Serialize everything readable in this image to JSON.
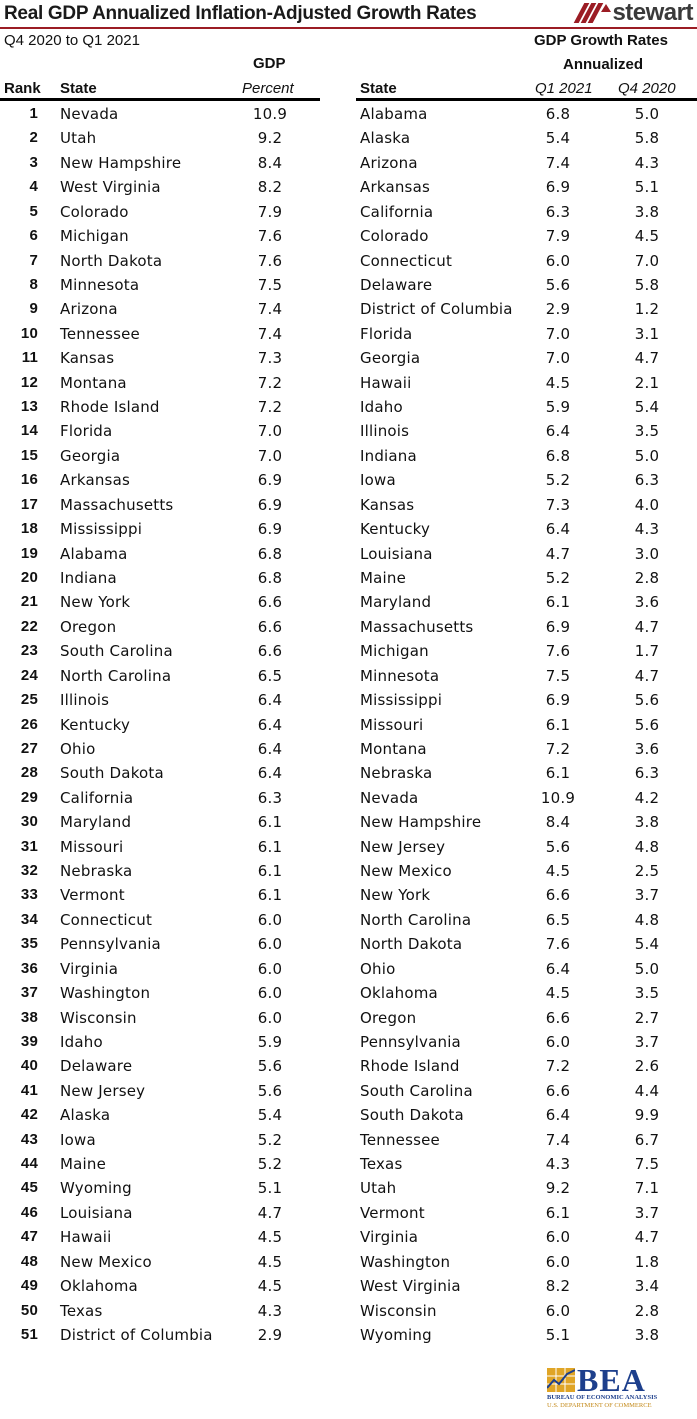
{
  "header": {
    "title": "Real GDP Annualized Inflation-Adjusted Growth Rates",
    "subtitle": "Q4 2020 to Q1 2021",
    "logo_text": "stewart"
  },
  "left_table": {
    "group_header": "GDP",
    "columns": [
      "Rank",
      "State",
      "Percent"
    ]
  },
  "right_table": {
    "group_header_line1": "GDP Growth Rates",
    "group_header_line2": "Annualized",
    "columns": [
      "State",
      "Q1 2021",
      "Q4 2020"
    ]
  },
  "footer": {
    "bea_logo_text": "BEA",
    "bea_line1": "BUREAU OF ECONOMIC ANALYSIS",
    "bea_line2": "U.S. DEPARTMENT OF COMMERCE"
  },
  "colors": {
    "accent_red": "#9b1c24",
    "bea_blue": "#1d3f8c",
    "bea_gold": "#e0a526"
  },
  "chart_data": [
    {
      "type": "table",
      "title": "Real GDP Annualized Inflation-Adjusted Growth Rates — Ranking",
      "subtitle": "Q4 2020 to Q1 2021",
      "columns": [
        "Rank",
        "State",
        "GDP Percent"
      ],
      "rows": [
        [
          1,
          "Nevada",
          "10.9"
        ],
        [
          2,
          "Utah",
          "9.2"
        ],
        [
          3,
          "New Hampshire",
          "8.4"
        ],
        [
          4,
          "West Virginia",
          "8.2"
        ],
        [
          5,
          "Colorado",
          "7.9"
        ],
        [
          6,
          "Michigan",
          "7.6"
        ],
        [
          7,
          "North Dakota",
          "7.6"
        ],
        [
          8,
          "Minnesota",
          "7.5"
        ],
        [
          9,
          "Arizona",
          "7.4"
        ],
        [
          10,
          "Tennessee",
          "7.4"
        ],
        [
          11,
          "Kansas",
          "7.3"
        ],
        [
          12,
          "Montana",
          "7.2"
        ],
        [
          13,
          "Rhode Island",
          "7.2"
        ],
        [
          14,
          "Florida",
          "7.0"
        ],
        [
          15,
          "Georgia",
          "7.0"
        ],
        [
          16,
          "Arkansas",
          "6.9"
        ],
        [
          17,
          "Massachusetts",
          "6.9"
        ],
        [
          18,
          "Mississippi",
          "6.9"
        ],
        [
          19,
          "Alabama",
          "6.8"
        ],
        [
          20,
          "Indiana",
          "6.8"
        ],
        [
          21,
          "New York",
          "6.6"
        ],
        [
          22,
          "Oregon",
          "6.6"
        ],
        [
          23,
          "South Carolina",
          "6.6"
        ],
        [
          24,
          "North Carolina",
          "6.5"
        ],
        [
          25,
          "Illinois",
          "6.4"
        ],
        [
          26,
          "Kentucky",
          "6.4"
        ],
        [
          27,
          "Ohio",
          "6.4"
        ],
        [
          28,
          "South Dakota",
          "6.4"
        ],
        [
          29,
          "California",
          "6.3"
        ],
        [
          30,
          "Maryland",
          "6.1"
        ],
        [
          31,
          "Missouri",
          "6.1"
        ],
        [
          32,
          "Nebraska",
          "6.1"
        ],
        [
          33,
          "Vermont",
          "6.1"
        ],
        [
          34,
          "Connecticut",
          "6.0"
        ],
        [
          35,
          "Pennsylvania",
          "6.0"
        ],
        [
          36,
          "Virginia",
          "6.0"
        ],
        [
          37,
          "Washington",
          "6.0"
        ],
        [
          38,
          "Wisconsin",
          "6.0"
        ],
        [
          39,
          "Idaho",
          "5.9"
        ],
        [
          40,
          "Delaware",
          "5.6"
        ],
        [
          41,
          "New Jersey",
          "5.6"
        ],
        [
          42,
          "Alaska",
          "5.4"
        ],
        [
          43,
          "Iowa",
          "5.2"
        ],
        [
          44,
          "Maine",
          "5.2"
        ],
        [
          45,
          "Wyoming",
          "5.1"
        ],
        [
          46,
          "Louisiana",
          "4.7"
        ],
        [
          47,
          "Hawaii",
          "4.5"
        ],
        [
          48,
          "New Mexico",
          "4.5"
        ],
        [
          49,
          "Oklahoma",
          "4.5"
        ],
        [
          50,
          "Texas",
          "4.3"
        ],
        [
          51,
          "District of Columbia",
          "2.9"
        ]
      ]
    },
    {
      "type": "table",
      "title": "GDP Growth Rates Annualized",
      "columns": [
        "State",
        "Q1 2021",
        "Q4 2020"
      ],
      "rows": [
        [
          "Alabama",
          "6.8",
          "5.0"
        ],
        [
          "Alaska",
          "5.4",
          "5.8"
        ],
        [
          "Arizona",
          "7.4",
          "4.3"
        ],
        [
          "Arkansas",
          "6.9",
          "5.1"
        ],
        [
          "California",
          "6.3",
          "3.8"
        ],
        [
          "Colorado",
          "7.9",
          "4.5"
        ],
        [
          "Connecticut",
          "6.0",
          "7.0"
        ],
        [
          "Delaware",
          "5.6",
          "5.8"
        ],
        [
          "District of Columbia",
          "2.9",
          "1.2"
        ],
        [
          "Florida",
          "7.0",
          "3.1"
        ],
        [
          "Georgia",
          "7.0",
          "4.7"
        ],
        [
          "Hawaii",
          "4.5",
          "2.1"
        ],
        [
          "Idaho",
          "5.9",
          "5.4"
        ],
        [
          "Illinois",
          "6.4",
          "3.5"
        ],
        [
          "Indiana",
          "6.8",
          "5.0"
        ],
        [
          "Iowa",
          "5.2",
          "6.3"
        ],
        [
          "Kansas",
          "7.3",
          "4.0"
        ],
        [
          "Kentucky",
          "6.4",
          "4.3"
        ],
        [
          "Louisiana",
          "4.7",
          "3.0"
        ],
        [
          "Maine",
          "5.2",
          "2.8"
        ],
        [
          "Maryland",
          "6.1",
          "3.6"
        ],
        [
          "Massachusetts",
          "6.9",
          "4.7"
        ],
        [
          "Michigan",
          "7.6",
          "1.7"
        ],
        [
          "Minnesota",
          "7.5",
          "4.7"
        ],
        [
          "Mississippi",
          "6.9",
          "5.6"
        ],
        [
          "Missouri",
          "6.1",
          "5.6"
        ],
        [
          "Montana",
          "7.2",
          "3.6"
        ],
        [
          "Nebraska",
          "6.1",
          "6.3"
        ],
        [
          "Nevada",
          "10.9",
          "4.2"
        ],
        [
          "New Hampshire",
          "8.4",
          "3.8"
        ],
        [
          "New Jersey",
          "5.6",
          "4.8"
        ],
        [
          "New Mexico",
          "4.5",
          "2.5"
        ],
        [
          "New York",
          "6.6",
          "3.7"
        ],
        [
          "North Carolina",
          "6.5",
          "4.8"
        ],
        [
          "North Dakota",
          "7.6",
          "5.4"
        ],
        [
          "Ohio",
          "6.4",
          "5.0"
        ],
        [
          "Oklahoma",
          "4.5",
          "3.5"
        ],
        [
          "Oregon",
          "6.6",
          "2.7"
        ],
        [
          "Pennsylvania",
          "6.0",
          "3.7"
        ],
        [
          "Rhode Island",
          "7.2",
          "2.6"
        ],
        [
          "South Carolina",
          "6.6",
          "4.4"
        ],
        [
          "South Dakota",
          "6.4",
          "9.9"
        ],
        [
          "Tennessee",
          "7.4",
          "6.7"
        ],
        [
          "Texas",
          "4.3",
          "7.5"
        ],
        [
          "Utah",
          "9.2",
          "7.1"
        ],
        [
          "Vermont",
          "6.1",
          "3.7"
        ],
        [
          "Virginia",
          "6.0",
          "4.7"
        ],
        [
          "Washington",
          "6.0",
          "1.8"
        ],
        [
          "West Virginia",
          "8.2",
          "3.4"
        ],
        [
          "Wisconsin",
          "6.0",
          "2.8"
        ],
        [
          "Wyoming",
          "5.1",
          "3.8"
        ]
      ]
    }
  ]
}
